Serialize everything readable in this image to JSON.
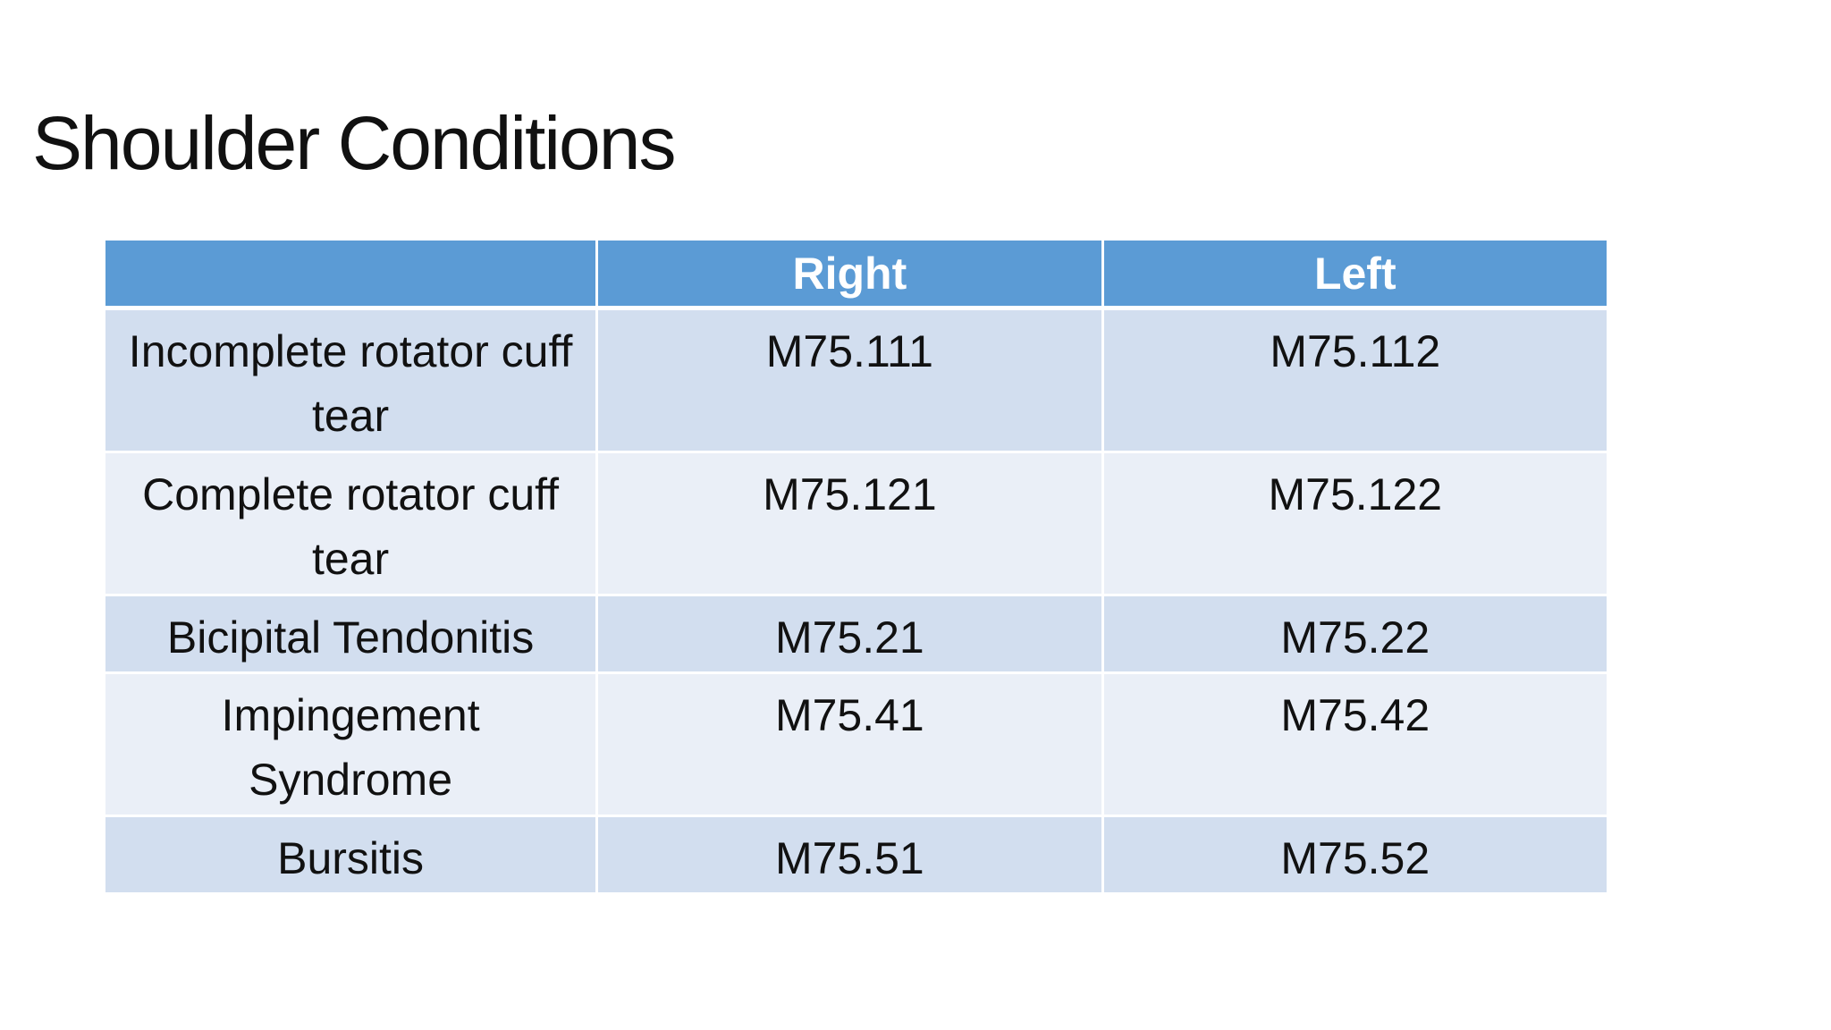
{
  "title": "Shoulder Conditions",
  "table": {
    "headers": [
      "",
      "Right",
      "Left"
    ],
    "rows": [
      {
        "condition": "Incomplete rotator cuff tear",
        "right": "M75.111",
        "left": "M75.112"
      },
      {
        "condition": "Complete rotator cuff tear",
        "right": "M75.121",
        "left": "M75.122"
      },
      {
        "condition": "Bicipital Tendonitis",
        "right": "M75.21",
        "left": "M75.22"
      },
      {
        "condition": "Impingement Syndrome",
        "right": "M75.41",
        "left": "M75.42"
      },
      {
        "condition": "Bursitis",
        "right": "M75.51",
        "left": "M75.52"
      }
    ]
  },
  "colors": {
    "header": "#5b9bd5",
    "row_odd": "#d2deef",
    "row_even": "#eaeff7"
  }
}
